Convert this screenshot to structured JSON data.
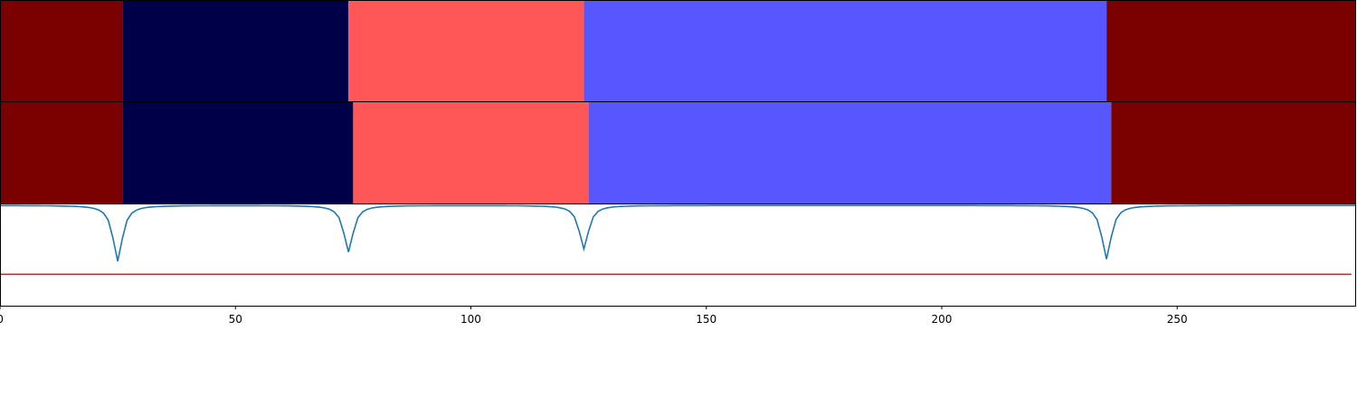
{
  "chart_data": [
    {
      "type": "heatmap",
      "segments": [
        {
          "start": 0,
          "end": 26,
          "color": "#7b0000"
        },
        {
          "start": 26,
          "end": 74,
          "color": "#000048"
        },
        {
          "start": 74,
          "end": 124,
          "color": "#ff5757"
        },
        {
          "start": 124,
          "end": 235,
          "color": "#5757ff"
        },
        {
          "start": 235,
          "end": 288,
          "color": "#7b0000"
        }
      ]
    },
    {
      "type": "heatmap",
      "segments": [
        {
          "start": 0,
          "end": 26,
          "color": "#7b0000"
        },
        {
          "start": 26,
          "end": 75,
          "color": "#000048"
        },
        {
          "start": 75,
          "end": 125,
          "color": "#ff5757"
        },
        {
          "start": 125,
          "end": 236,
          "color": "#5757ff"
        },
        {
          "start": 236,
          "end": 288,
          "color": "#7b0000"
        }
      ]
    },
    {
      "type": "line",
      "xlim": [
        0,
        288
      ],
      "ylim": [
        0,
        1
      ],
      "x_ticks": [
        0,
        50,
        100,
        150,
        200,
        250
      ],
      "tick_labels": [
        "0",
        "50",
        "100",
        "150",
        "200",
        "250"
      ],
      "grid": false,
      "series": [
        {
          "color": "#1f77b4",
          "baseline": 0.99,
          "dips": [
            {
              "x": 25,
              "depth": 0.55
            },
            {
              "x": 74,
              "depth": 0.46
            },
            {
              "x": 124,
              "depth": 0.43
            },
            {
              "x": 235,
              "depth": 0.53
            }
          ]
        },
        {
          "color": "#d62728",
          "constant": 0.31,
          "x_range": [
            0,
            287
          ]
        }
      ]
    }
  ]
}
